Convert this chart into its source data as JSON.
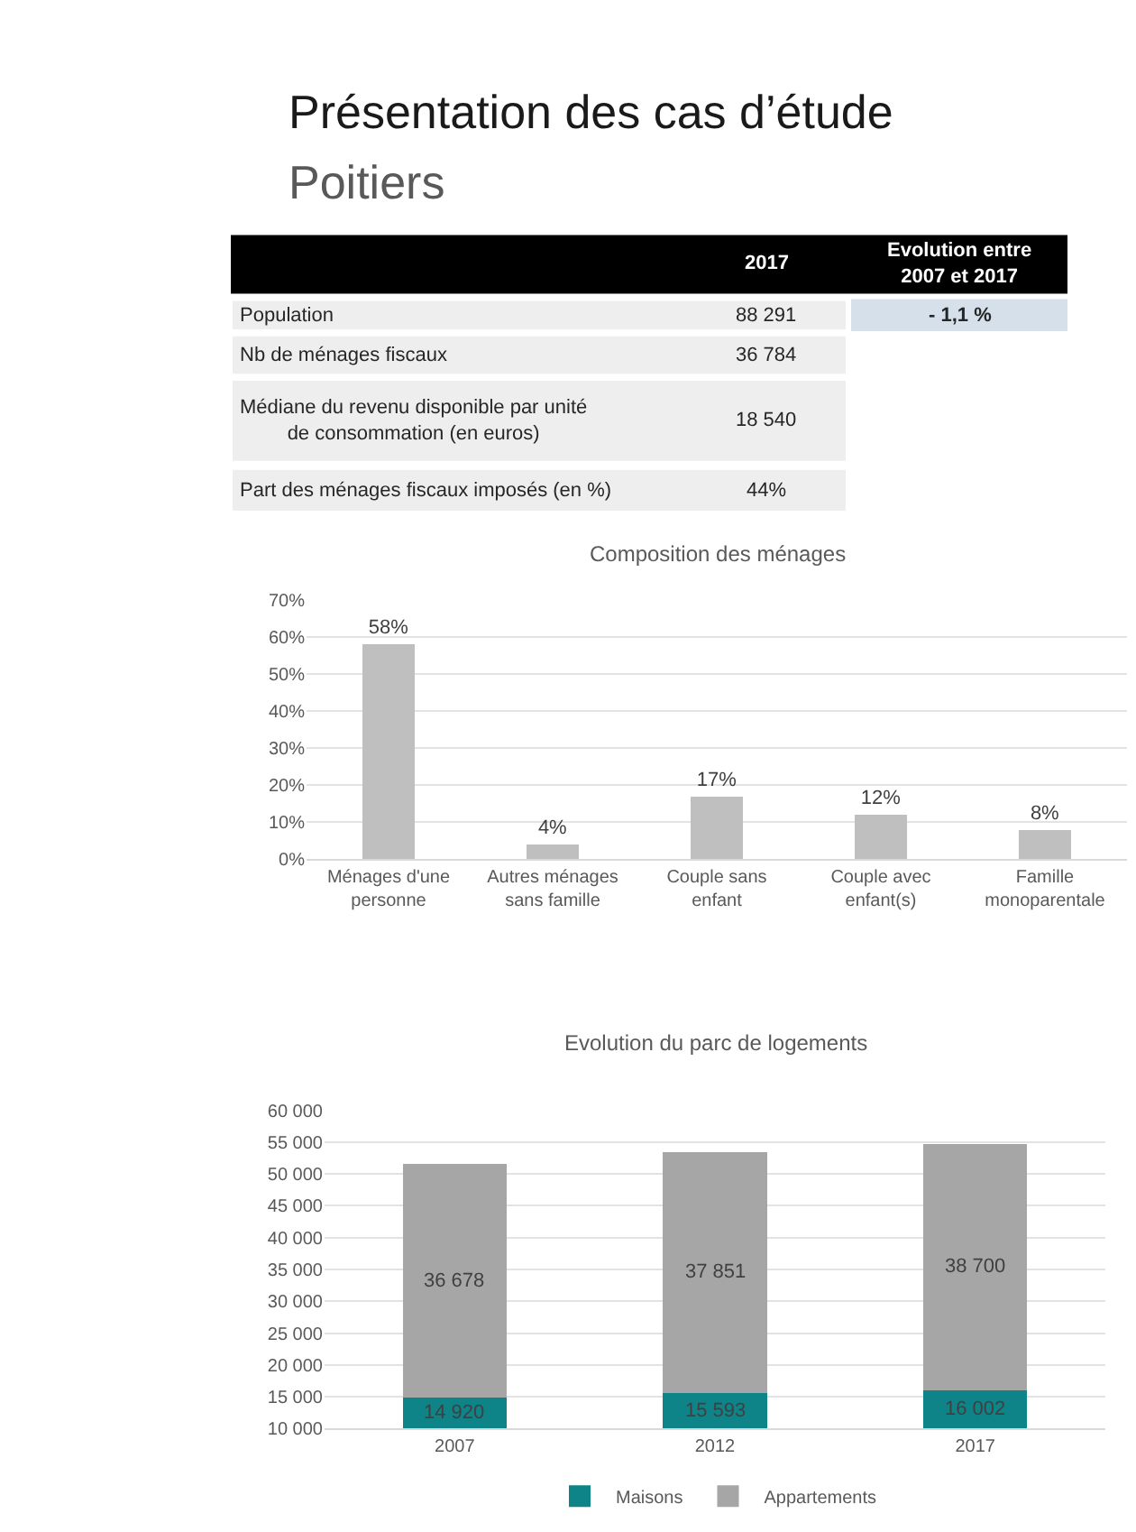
{
  "chart_data": [
    {
      "type": "other",
      "title": "Présentation des cas d’étude",
      "subtitle": "Poitiers",
      "annotations": [
        "2017",
        "Evolution entre\n2007 et 2017",
        "Population",
        "88 291",
        "- 1,1 %",
        "Nb de ménages fiscaux",
        "36 784",
        "Médiane du revenu disponible par unité\nde consommation (en euros)",
        "18 540",
        "Part des ménages fiscaux imposés (en %)",
        "44%"
      ]
    },
    {
      "type": "bar",
      "title": "Composition des ménages",
      "categories": [
        "Ménages d'une personne",
        "Autres ménages sans famille",
        "Couple sans enfant",
        "Couple avec enfant(s)",
        "Famille monoparentale"
      ],
      "values": [
        58,
        4,
        17,
        12,
        8
      ],
      "value_labels": [
        "58%",
        "4%",
        "17%",
        "12%",
        "8%"
      ],
      "color": "#bfbfbf",
      "ylim": [
        0,
        70
      ],
      "yticks": [
        {
          "value": 0,
          "label": "0%"
        },
        {
          "value": 10,
          "label": "10%"
        },
        {
          "value": 20,
          "label": "20%"
        },
        {
          "value": 30,
          "label": "30%"
        },
        {
          "value": 40,
          "label": "40%"
        },
        {
          "value": 50,
          "label": "50%"
        },
        {
          "value": 60,
          "label": "60%"
        },
        {
          "value": 70,
          "label": "70%"
        }
      ],
      "grid": "y",
      "legend": false
    },
    {
      "type": "bar",
      "title": "Evolution du parc de logements",
      "stacked": true,
      "categories": [
        "2007",
        "2012",
        "2017"
      ],
      "series": [
        {
          "name": "Maisons",
          "color": "#0e8388",
          "values": [
            14920,
            15593,
            16002
          ],
          "value_labels": [
            "14 920",
            "15 593",
            "16 002"
          ]
        },
        {
          "name": "Appartements",
          "color": "#a6a6a6",
          "values": [
            36678,
            37851,
            38700
          ],
          "value_labels": [
            "36 678",
            "37 851",
            "38 700"
          ]
        }
      ],
      "ylim": [
        10000,
        60000
      ],
      "yticks": [
        {
          "value": 10000,
          "label": "10 000"
        },
        {
          "value": 15000,
          "label": "15 000"
        },
        {
          "value": 20000,
          "label": "20 000"
        },
        {
          "value": 25000,
          "label": "25 000"
        },
        {
          "value": 30000,
          "label": "30 000"
        },
        {
          "value": 35000,
          "label": "35 000"
        },
        {
          "value": 40000,
          "label": "40 000"
        },
        {
          "value": 45000,
          "label": "45 000"
        },
        {
          "value": 50000,
          "label": "50 000"
        },
        {
          "value": 55000,
          "label": "55 000"
        },
        {
          "value": 60000,
          "label": "60 000"
        }
      ],
      "grid": "y",
      "legend": "bottom"
    }
  ]
}
